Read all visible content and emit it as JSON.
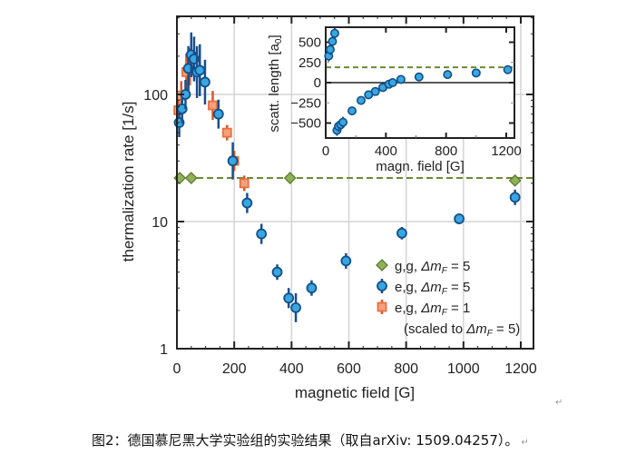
{
  "chart_data": {
    "type": "scatter",
    "title": "",
    "xlabel": "magnetic field [G]",
    "ylabel": "thermalization rate [1/s]",
    "xlim": [
      0,
      1250
    ],
    "ylim": [
      1,
      400
    ],
    "yscale": "log",
    "x_ticks": [
      0,
      200,
      400,
      600,
      800,
      1000,
      1200
    ],
    "x_tick_labels": [
      "0",
      "200",
      "400",
      "600",
      "800",
      "1000",
      "1200"
    ],
    "y_ticks": [
      1,
      10,
      100
    ],
    "y_tick_labels": [
      "1",
      "10",
      "100"
    ],
    "grid": true,
    "legend_position": "bottom-right",
    "reference_line": {
      "value": 22,
      "style": "dashed",
      "color": "#6b8a35"
    },
    "series": [
      {
        "name": "g,g, Δm_F = 5",
        "legend_prefix": "g,g, ",
        "legend_delta": "Δm",
        "legend_sub": "F",
        "legend_suffix": " = 5",
        "marker": "diamond",
        "color": "#8fb15a",
        "x": [
          10,
          50,
          395,
          1180
        ],
        "y": [
          22,
          22,
          22,
          21
        ]
      },
      {
        "name": "e,g, Δm_F = 5",
        "legend_prefix": "e,g, ",
        "legend_delta": "Δm",
        "legend_sub": "F",
        "legend_suffix": " = 5",
        "marker": "circle",
        "color": "#3aa6e0",
        "x": [
          8,
          18,
          30,
          40,
          50,
          60,
          70,
          80,
          98,
          145,
          195,
          245,
          295,
          350,
          390,
          415,
          470,
          590,
          785,
          985,
          1180
        ],
        "y": [
          60,
          77,
          100,
          160,
          205,
          190,
          150,
          155,
          125,
          70,
          30,
          14,
          8,
          4.0,
          2.5,
          2.1,
          3.0,
          4.9,
          8.1,
          10.5,
          15.5
        ],
        "yerr_rel": [
          0.3,
          0.3,
          0.3,
          0.5,
          0.5,
          0.5,
          0.6,
          0.6,
          0.5,
          0.3,
          0.4,
          0.2,
          0.2,
          0.15,
          0.2,
          0.3,
          0.15,
          0.15,
          0.12,
          0.1,
          0.15
        ]
      },
      {
        "name": "e,g, Δm_F = 1 (scaled to Δm_F = 5)",
        "legend_prefix": "e,g, ",
        "legend_delta": "Δm",
        "legend_sub": "F",
        "legend_suffix": " = 1",
        "legend_note": "(scaled to ",
        "legend_note_delta": "Δm",
        "legend_note_sub": "F",
        "legend_note_suffix": " = 5)",
        "marker": "square",
        "color": "#e8703f",
        "x": [
          5,
          15,
          33,
          45,
          125,
          175,
          200,
          235
        ],
        "y": [
          75,
          98,
          150,
          165,
          82,
          50,
          30,
          20
        ],
        "yerr_rel": [
          0.3,
          0.3,
          0.4,
          0.4,
          0.3,
          0.15,
          0.2,
          0.15
        ]
      }
    ],
    "inset": {
      "type": "scatter",
      "xlabel": "magn. field [G]",
      "ylabel_prefix": "scatt. length [a",
      "ylabel_sub": "0",
      "ylabel_suffix": "]",
      "xlim": [
        0,
        1270
      ],
      "ylim": [
        -700,
        650
      ],
      "x_ticks": [
        0,
        400,
        800,
        1200
      ],
      "x_tick_labels": [
        "0",
        "400",
        "800",
        "1200"
      ],
      "y_ticks": [
        500,
        250,
        0,
        -250,
        -500
      ],
      "y_tick_labels": [
        "500",
        "250",
        "0",
        "−250",
        "−500"
      ],
      "zero_line": true,
      "reference_line": {
        "value": 190,
        "style": "dashed",
        "color": "#6b8a35"
      },
      "series": [
        {
          "name": "scattering length",
          "marker": "circle",
          "color": "#3aa6e0",
          "x": [
            20,
            30,
            45,
            60,
            75,
            85,
            100,
            115,
            175,
            235,
            285,
            330,
            380,
            420,
            445,
            500,
            620,
            810,
            1000,
            1210
          ],
          "y": [
            330,
            410,
            510,
            610,
            -590,
            -540,
            -520,
            -490,
            -350,
            -220,
            -150,
            -110,
            -60,
            -20,
            0,
            40,
            70,
            100,
            120,
            160
          ]
        }
      ]
    }
  },
  "caption": {
    "text": "图2：德国慕尼黑大学实验组的实验结果（取自arXiv: 1509.04257）。",
    "return_mark": "↵"
  }
}
